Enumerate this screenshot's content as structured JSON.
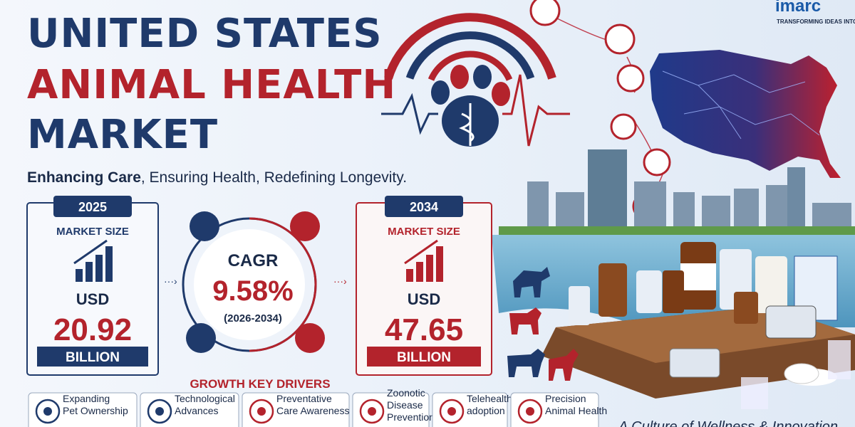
{
  "logo": {
    "name": "imarc",
    "tagline": "TRANSFORMING IDEAS INTO IMPACT"
  },
  "header": {
    "title_lines": [
      "UNITED STATES",
      "ANIMAL HEALTH",
      "MARKET"
    ],
    "subtitle_bold": "Enhancing Care",
    "subtitle_rest": ", Ensuring Health, Redefining Longevity."
  },
  "start": {
    "year": "2025",
    "label": "MARKET SIZE",
    "currency": "USD",
    "value": "20.92",
    "unit": "BILLION"
  },
  "cagr": {
    "label": "CAGR",
    "value": "9.58%",
    "period": "(2026-2034)"
  },
  "end": {
    "year": "2034",
    "label": "MARKET SIZE",
    "currency": "USD",
    "value": "47.65",
    "unit": "BILLION"
  },
  "drivers": {
    "title": "GROWTH KEY DRIVERS",
    "items": [
      [
        "Expanding",
        "Pet Ownership"
      ],
      [
        "Technological",
        "Advances"
      ],
      [
        "Preventative",
        "Care Awareness"
      ],
      [
        "Zoonotic",
        "Disease",
        "Prevention"
      ],
      [
        "Telehealth",
        "adoption"
      ],
      [
        "Precision",
        "Animal Health"
      ]
    ]
  },
  "tagline": "A Culture of Wellness & Innovation"
}
